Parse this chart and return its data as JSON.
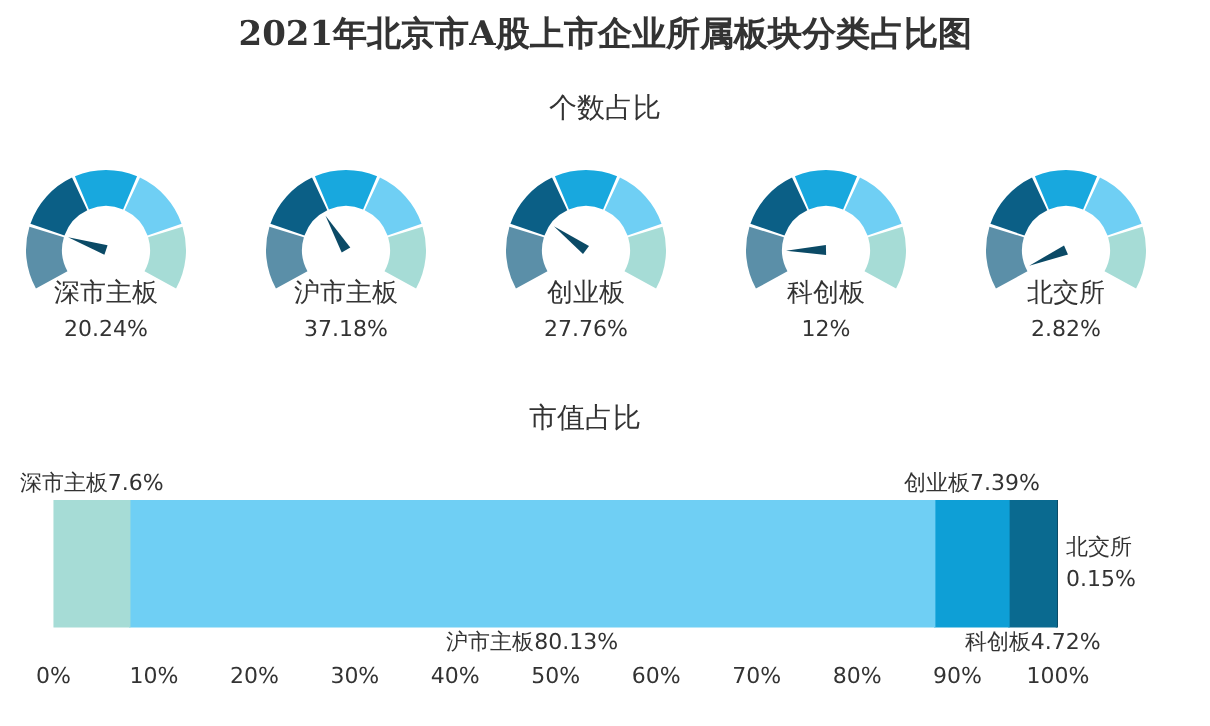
{
  "chart_data": [
    {
      "type": "other",
      "title": "2021年北京市A股上市企业所属板块分类占比图",
      "subtitle": "个数占比",
      "categories": [
        "深市主板",
        "沪市主板",
        "创业板",
        "科创板",
        "北交所"
      ],
      "values": [
        20.24,
        37.18,
        27.76,
        12,
        2.82
      ],
      "value_labels": [
        "20.24%",
        "37.18%",
        "27.76%",
        "12%",
        "2.82%"
      ],
      "colors": [
        "#5b8fa8",
        "#0b5f86",
        "#18a8de",
        "#6fcff4",
        "#a6dcd6"
      ]
    },
    {
      "type": "bar",
      "orientation": "horizontal",
      "stacked": true,
      "title": "市值占比",
      "categories": [
        null
      ],
      "xlim": [
        0,
        100
      ],
      "xticks": [
        {
          "value": 0,
          "label": "0%"
        },
        {
          "value": 10,
          "label": "10%"
        },
        {
          "value": 20,
          "label": "20%"
        },
        {
          "value": 30,
          "label": "30%"
        },
        {
          "value": 40,
          "label": "40%"
        },
        {
          "value": 50,
          "label": "50%"
        },
        {
          "value": 60,
          "label": "60%"
        },
        {
          "value": 70,
          "label": "70%"
        },
        {
          "value": 80,
          "label": "80%"
        },
        {
          "value": 90,
          "label": "90%"
        },
        {
          "value": 100,
          "label": "100%"
        }
      ],
      "grid": false,
      "legend": false,
      "series": [
        {
          "name": "深市主板",
          "color": "#a6dcd6",
          "values": [
            7.6
          ],
          "value_labels": [
            "7.6%"
          ]
        },
        {
          "name": "沪市主板",
          "color": "#6fcff4",
          "values": [
            80.13
          ],
          "value_labels": [
            "80.13%"
          ]
        },
        {
          "name": "创业板",
          "color": "#0e9fd6",
          "values": [
            7.39
          ],
          "value_labels": [
            "7.39%"
          ]
        },
        {
          "name": "科创板",
          "color": "#0a6a90",
          "values": [
            4.72
          ],
          "value_labels": [
            "4.72%"
          ]
        },
        {
          "name": "北交所",
          "color": "#0b4a66",
          "values": [
            0.15
          ],
          "value_labels": [
            "0.15%"
          ]
        }
      ]
    }
  ]
}
